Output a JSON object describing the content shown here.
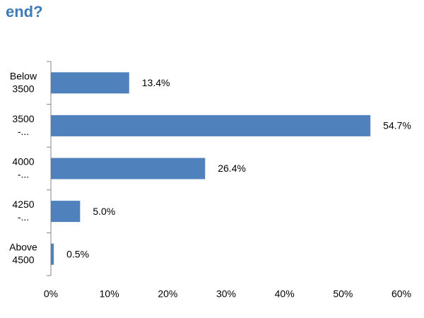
{
  "chart_data": {
    "type": "barh",
    "title": "end?",
    "categories": [
      [
        "Below",
        "3500"
      ],
      [
        "3500",
        "-..."
      ],
      [
        "4000",
        "-..."
      ],
      [
        "4250",
        "-..."
      ],
      [
        "Above",
        "4500"
      ]
    ],
    "values": [
      13.4,
      54.7,
      26.4,
      5.0,
      0.5
    ],
    "value_labels": [
      "13.4%",
      "54.7%",
      "26.4%",
      "5.0%",
      "0.5%"
    ],
    "color": "#4f81bd",
    "xlim": [
      0,
      60
    ],
    "xticks": [
      {
        "value": 0,
        "label": "0%"
      },
      {
        "value": 10,
        "label": "10%"
      },
      {
        "value": 20,
        "label": "20%"
      },
      {
        "value": 30,
        "label": "30%"
      },
      {
        "value": 40,
        "label": "40%"
      },
      {
        "value": 50,
        "label": "50%"
      },
      {
        "value": 60,
        "label": "60%"
      }
    ],
    "grid": false
  }
}
